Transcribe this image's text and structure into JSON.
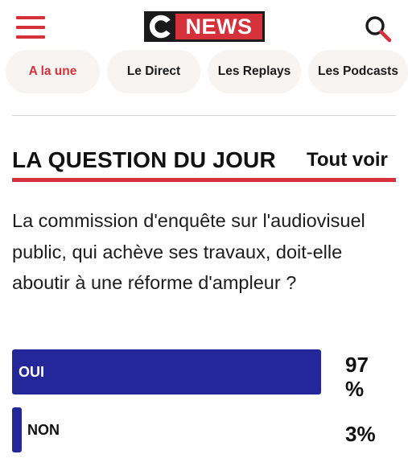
{
  "header": {
    "logo": {
      "letter": "C",
      "text": "NEWS",
      "colors": {
        "dark": "#1a1a1a",
        "red": "#d6313b",
        "white": "#ffffff"
      }
    },
    "icons": {
      "menu": "hamburger-menu-icon",
      "search": "search-icon"
    }
  },
  "nav": {
    "tabs": [
      {
        "label": "A la une",
        "active": true
      },
      {
        "label": "Le Direct",
        "active": false
      },
      {
        "label": "Les Replays",
        "active": false
      },
      {
        "label": "Les Podcasts",
        "active": false
      }
    ]
  },
  "section": {
    "title": "LA QUESTION DU JOUR",
    "see_all": "Tout voir"
  },
  "poll": {
    "question": "La commission d'enquête sur l'audiovisuel public, qui achève ses travaux, doit-elle aboutir à une réforme d'ampleur ?",
    "options": [
      {
        "label": "OUI",
        "percent_text": "97 %",
        "value": 97
      },
      {
        "label": "NON",
        "percent_text": "3%",
        "value": 3
      }
    ]
  },
  "colors": {
    "accent": "#d6313b",
    "bar": "#24279a",
    "tab_bg": "#f7f4f2"
  }
}
